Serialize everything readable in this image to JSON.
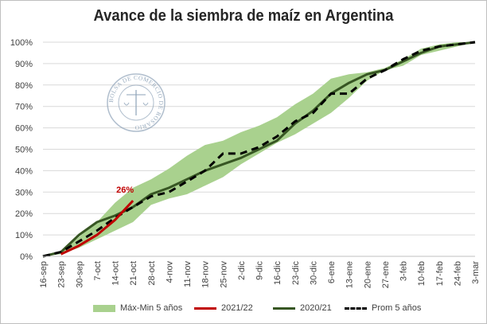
{
  "chart_data": {
    "type": "line",
    "title": "Avance de la siembra de maíz en Argentina",
    "x_labels": [
      "16-sep",
      "23-sep",
      "30-sep",
      "7-oct",
      "14-oct",
      "21-oct",
      "28-oct",
      "4-nov",
      "11-nov",
      "18-nov",
      "25-nov",
      "2-dic",
      "9-dic",
      "16-dic",
      "23-dic",
      "30-dic",
      "6-ene",
      "13-ene",
      "20-ene",
      "27-ene",
      "3-feb",
      "10-feb",
      "17-feb",
      "24-feb",
      "3-mar"
    ],
    "y_ticks": [
      "0%",
      "10%",
      "20%",
      "30%",
      "40%",
      "50%",
      "60%",
      "70%",
      "80%",
      "90%",
      "100%"
    ],
    "ylim": [
      0,
      100
    ],
    "series": [
      {
        "name": "Máx-Min 5 años",
        "kind": "band",
        "color": "#a9d18e",
        "max": [
          0,
          2,
          9,
          16,
          25,
          32,
          36,
          41,
          47,
          52,
          54,
          58,
          61,
          65,
          71,
          76,
          83,
          85,
          86,
          88,
          92,
          97,
          99,
          100,
          100
        ],
        "min": [
          0,
          1,
          4,
          8,
          12,
          16,
          24,
          27,
          29,
          33,
          37,
          43,
          48,
          53,
          57,
          62,
          67,
          74,
          82,
          87,
          89,
          94,
          96,
          98,
          100
        ]
      },
      {
        "name": "2021/22",
        "kind": "line",
        "color": "#c00000",
        "values": [
          null,
          1,
          5,
          10,
          17,
          26,
          null,
          null,
          null,
          null,
          null,
          null,
          null,
          null,
          null,
          null,
          null,
          null,
          null,
          null,
          null,
          null,
          null,
          null,
          null
        ]
      },
      {
        "name": "2020/21",
        "kind": "line",
        "color": "#375623",
        "values": [
          0,
          2,
          10,
          16,
          19,
          23,
          29,
          32,
          36,
          40,
          43,
          46,
          50,
          54,
          62,
          68,
          76,
          81,
          85,
          87,
          91,
          95,
          98,
          99,
          100
        ]
      },
      {
        "name": "Prom 5 años",
        "kind": "dashed",
        "color": "#000000",
        "values": [
          0,
          2,
          7,
          12,
          18,
          23,
          28,
          30,
          35,
          40,
          48,
          48,
          51,
          56,
          63,
          67,
          76,
          76,
          83,
          87,
          92,
          96,
          98,
          99,
          100
        ]
      }
    ],
    "annotation": {
      "text": "26%",
      "color": "#c00000"
    },
    "grid": true,
    "legend_position": "bottom"
  },
  "watermark_text": "BOLSA DE COMERCIO DE ROSARIO"
}
